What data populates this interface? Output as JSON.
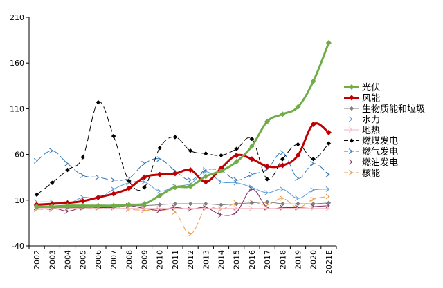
{
  "chart_data": {
    "type": "line",
    "title": "",
    "xlabel": "",
    "ylabel": "",
    "categories": [
      "2002",
      "2003",
      "2004",
      "2005",
      "2006",
      "2007",
      "2008",
      "2009",
      "2010",
      "2011",
      "2012",
      "2013",
      "2014",
      "2015",
      "2016",
      "2017",
      "2018",
      "2019",
      "2020",
      "2021E"
    ],
    "ylim": [
      -40,
      210
    ],
    "yticks": [
      -40,
      10,
      60,
      110,
      160,
      210
    ],
    "grid": false,
    "legend_position": "right",
    "series": [
      {
        "name": "光伏",
        "color": "#70ad47",
        "dash": "",
        "marker": "diamond",
        "width": 3,
        "values": [
          3,
          3,
          4,
          4,
          4,
          4,
          5,
          6,
          15,
          24,
          25,
          36,
          42,
          52,
          69,
          96,
          104,
          112,
          140,
          182
        ]
      },
      {
        "name": "风能",
        "color": "#c00000",
        "dash": "",
        "marker": "diamond",
        "width": 3,
        "values": [
          5,
          6,
          7,
          9,
          13,
          17,
          23,
          35,
          38,
          39,
          43,
          30,
          45,
          59,
          55,
          47,
          48,
          59,
          93,
          84
        ]
      },
      {
        "name": "生物质能和垃圾",
        "color": "#7f7f7f",
        "dash": "",
        "marker": "diamond",
        "width": 1,
        "values": [
          2,
          2,
          2,
          2,
          3,
          3,
          4,
          4,
          5,
          6,
          6,
          6,
          5,
          6,
          7,
          8,
          6,
          6,
          6,
          7
        ]
      },
      {
        "name": "水力",
        "color": "#5b9bd5",
        "dash": "",
        "marker": "arrow",
        "width": 1,
        "values": [
          8,
          8,
          6,
          13,
          12,
          22,
          29,
          30,
          20,
          25,
          28,
          41,
          30,
          29,
          24,
          18,
          22,
          12,
          21,
          22
        ]
      },
      {
        "name": "地热",
        "color": "#f4b6c2",
        "dash": "",
        "marker": "arrow",
        "width": 1,
        "values": [
          1,
          1,
          1,
          1,
          1,
          1,
          1,
          1,
          1,
          1,
          1,
          1,
          1,
          1,
          1,
          1,
          1,
          1,
          1,
          1
        ]
      },
      {
        "name": "燃煤发电",
        "color": "#000000",
        "dash": "9,5",
        "marker": "diamond",
        "width": 1,
        "values": [
          16,
          29,
          43,
          57,
          117,
          80,
          31,
          24,
          67,
          79,
          64,
          61,
          59,
          66,
          77,
          33,
          55,
          71,
          55,
          72
        ]
      },
      {
        "name": "燃气发电",
        "color": "#2e75b6",
        "dash": "9,5",
        "marker": "arrow",
        "width": 1,
        "values": [
          53,
          64,
          50,
          37,
          35,
          32,
          34,
          50,
          55,
          42,
          32,
          43,
          42,
          32,
          38,
          44,
          62,
          34,
          50,
          38
        ]
      },
      {
        "name": "燃油发电",
        "color": "#7b2c5f",
        "dash": "",
        "marker": "arrow",
        "width": 1,
        "values": [
          2,
          2,
          -2,
          2,
          2,
          2,
          4,
          1,
          -1,
          2,
          0,
          2,
          -6,
          -3,
          22,
          2,
          2,
          2,
          3,
          4
        ]
      },
      {
        "name": "核能",
        "color": "#ed9b48",
        "dash": "9,5",
        "marker": "arrow",
        "width": 1,
        "values": [
          0,
          0,
          1,
          2,
          1,
          3,
          0,
          -1,
          -1,
          -3,
          -27,
          1,
          0,
          7,
          8,
          5,
          12,
          2,
          11,
          14
        ]
      }
    ]
  }
}
